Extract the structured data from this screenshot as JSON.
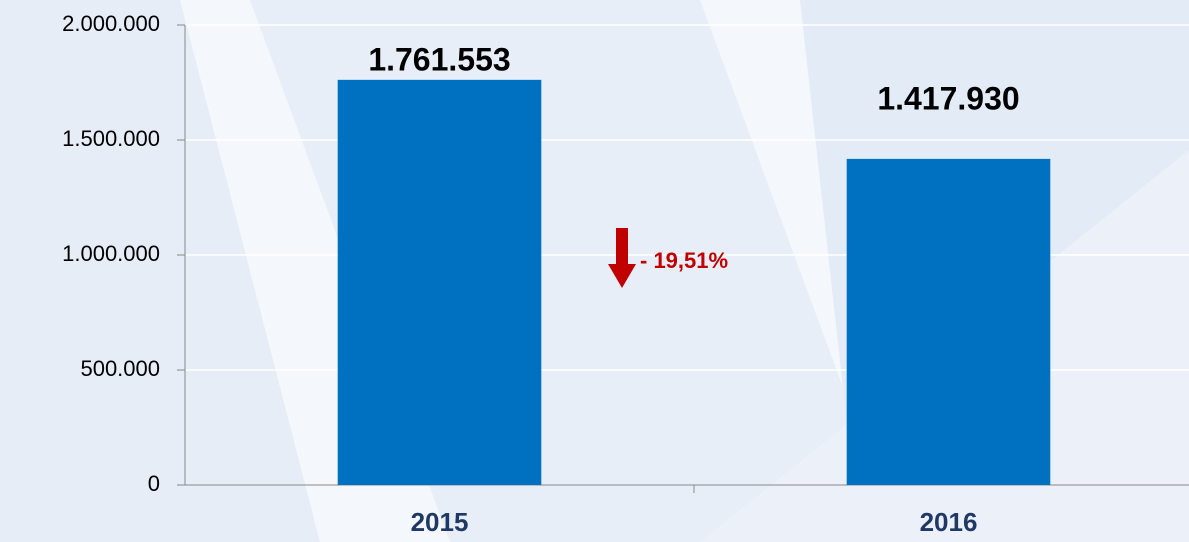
{
  "chart_data": {
    "type": "bar",
    "categories": [
      "2015",
      "2016"
    ],
    "values": [
      1761553,
      1417930
    ],
    "value_labels": [
      "1.761.553",
      "1.417.930"
    ],
    "color": "#0070c0",
    "ylim": [
      0,
      2000000
    ],
    "yticks": [
      0,
      {
        "value": 500000,
        "label": "500.000"
      },
      {
        "value": 1000000,
        "label": "1.000.000"
      },
      {
        "value": 1500000,
        "label": "1.500.000"
      },
      {
        "value": 2000000,
        "label": "2.000.000"
      }
    ],
    "grid": true,
    "annotation": "- 19,51%"
  }
}
